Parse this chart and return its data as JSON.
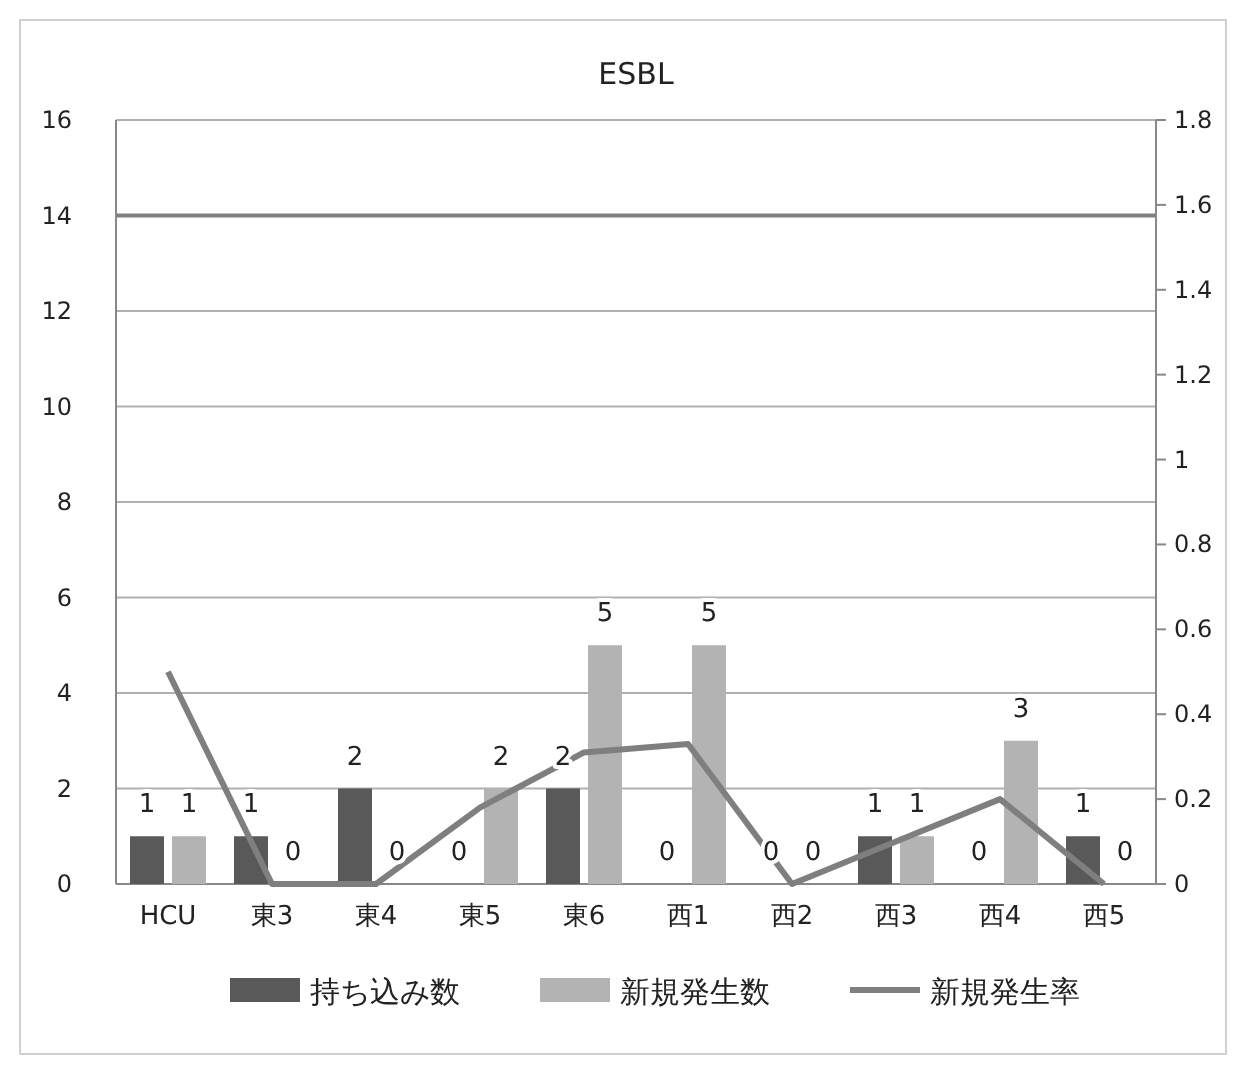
{
  "chart_data": {
    "type": "bar",
    "title": "ESBL",
    "categories": [
      "HCU",
      "東3",
      "東4",
      "東5",
      "東6",
      "西1",
      "西2",
      "西3",
      "西4",
      "西5"
    ],
    "series": [
      {
        "name": "持ち込み数",
        "color": "#595959",
        "values": [
          1,
          1,
          2,
          0,
          2,
          0,
          0,
          1,
          0,
          1
        ],
        "value_labels": [
          "1",
          "1",
          "2",
          "0",
          "2",
          "0",
          "0",
          "1",
          "0",
          "1"
        ]
      },
      {
        "name": "新規発生数",
        "color": "#b3b3b3",
        "values": [
          1,
          0,
          0,
          2,
          5,
          5,
          0,
          1,
          3,
          0
        ],
        "value_labels": [
          "1",
          "0",
          "0",
          "2",
          "5",
          "5",
          "0",
          "1",
          "3",
          "0"
        ]
      },
      {
        "name": "新規発生率",
        "type": "line",
        "axis": "y2",
        "color": "#7f7f7f",
        "values": [
          0.5,
          0,
          0,
          0.18,
          0.31,
          0.33,
          0,
          0.1,
          0.2,
          0
        ]
      }
    ],
    "ylim": [
      0,
      16
    ],
    "yticks": [
      0,
      2,
      4,
      6,
      8,
      10,
      12,
      14,
      16
    ],
    "y2lim": [
      0,
      1.8
    ],
    "y2ticks": [
      0,
      0.2,
      0.4,
      0.6,
      0.8,
      1,
      1.2,
      1.4,
      1.6,
      1.8
    ],
    "ref_lines": [
      {
        "axis": "y",
        "value": 14,
        "color": "#808080"
      }
    ],
    "grid": "y",
    "legend": "bottom",
    "marker": "none",
    "line_style": "solid"
  }
}
